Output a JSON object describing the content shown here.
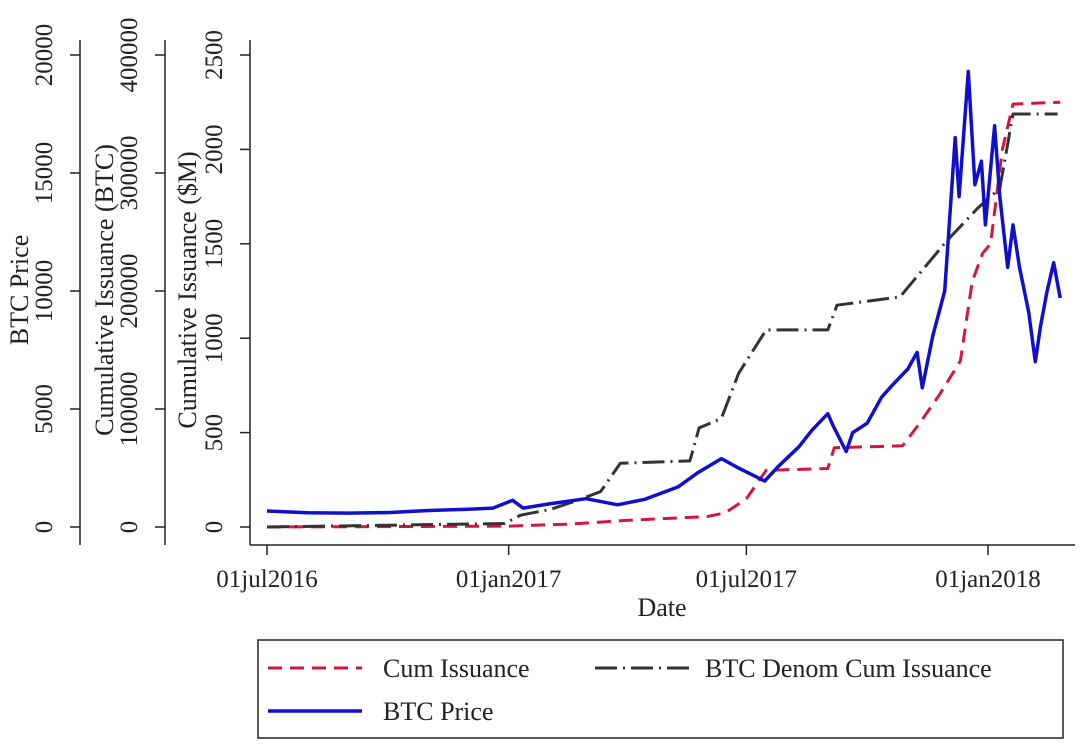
{
  "chart_data": {
    "type": "line",
    "xlabel": "Date",
    "x_ticks": [
      "01jul2016",
      "01jan2017",
      "01jul2017",
      "01jan2018"
    ],
    "x_tick_dates": [
      "2016-07-01",
      "2017-01-01",
      "2017-07-01",
      "2018-01-01"
    ],
    "y_axes": [
      {
        "label": "BTC Price",
        "range": [
          0,
          20000
        ],
        "ticks": [
          "0",
          "5000",
          "10000",
          "15000",
          "20000"
        ]
      },
      {
        "label": "Cumulative Issuance (BTC)",
        "range": [
          0,
          400000
        ],
        "ticks": [
          "0",
          "100000",
          "200000",
          "300000",
          "400000"
        ]
      },
      {
        "label": "Cumulative Issuance ($M)",
        "range": [
          0,
          2500
        ],
        "ticks": [
          "0",
          "500",
          "1000",
          "1500",
          "2000",
          "2500"
        ]
      }
    ],
    "legend": {
      "position": "bottom",
      "entries": [
        "Cum Issuance",
        "BTC Denom Cum Issuance",
        "BTC Price"
      ]
    },
    "series": [
      {
        "name": "Cum Issuance",
        "axis": 2,
        "color": "#d4163c",
        "style": "dashed",
        "points": [
          [
            "2016-07-01",
            0
          ],
          [
            "2016-10-01",
            2
          ],
          [
            "2017-01-01",
            5
          ],
          [
            "2017-02-15",
            15
          ],
          [
            "2017-04-01",
            35
          ],
          [
            "2017-05-01",
            45
          ],
          [
            "2017-06-01",
            55
          ],
          [
            "2017-06-15",
            75
          ],
          [
            "2017-07-01",
            150
          ],
          [
            "2017-07-16",
            300
          ],
          [
            "2017-09-01",
            310
          ],
          [
            "2017-09-06",
            420
          ],
          [
            "2017-10-28",
            430
          ],
          [
            "2017-11-10",
            550
          ],
          [
            "2017-11-25",
            700
          ],
          [
            "2017-12-11",
            880
          ],
          [
            "2017-12-20",
            1300
          ],
          [
            "2017-12-28",
            1450
          ],
          [
            "2018-01-03",
            1500
          ],
          [
            "2018-01-12",
            2000
          ],
          [
            "2018-01-20",
            2240
          ],
          [
            "2018-02-25",
            2250
          ]
        ]
      },
      {
        "name": "BTC Denom Cum Issuance",
        "axis": 1,
        "color": "#333333",
        "style": "dashdot",
        "points": [
          [
            "2016-07-01",
            0
          ],
          [
            "2016-12-29",
            3000
          ],
          [
            "2017-01-10",
            10000
          ],
          [
            "2017-02-02",
            15000
          ],
          [
            "2017-02-21",
            22000
          ],
          [
            "2017-03-12",
            30000
          ],
          [
            "2017-03-27",
            54000
          ],
          [
            "2017-05-19",
            56000
          ],
          [
            "2017-05-26",
            84000
          ],
          [
            "2017-06-12",
            92000
          ],
          [
            "2017-06-25",
            130000
          ],
          [
            "2017-07-16",
            167000
          ],
          [
            "2017-09-01",
            167000
          ],
          [
            "2017-09-08",
            188000
          ],
          [
            "2017-10-26",
            195000
          ],
          [
            "2017-12-01",
            243000
          ],
          [
            "2017-12-24",
            270000
          ],
          [
            "2018-01-10",
            287000
          ],
          [
            "2018-01-20",
            350000
          ],
          [
            "2018-02-23",
            350000
          ]
        ]
      },
      {
        "name": "BTC Price",
        "axis": 0,
        "color": "#1010cc",
        "style": "solid",
        "points": [
          [
            "2016-07-01",
            680
          ],
          [
            "2016-08-01",
            600
          ],
          [
            "2016-09-01",
            590
          ],
          [
            "2016-10-01",
            610
          ],
          [
            "2016-11-01",
            700
          ],
          [
            "2016-12-01",
            750
          ],
          [
            "2016-12-20",
            800
          ],
          [
            "2017-01-04",
            1130
          ],
          [
            "2017-01-12",
            800
          ],
          [
            "2017-02-01",
            980
          ],
          [
            "2017-03-01",
            1200
          ],
          [
            "2017-03-25",
            940
          ],
          [
            "2017-04-15",
            1180
          ],
          [
            "2017-05-10",
            1700
          ],
          [
            "2017-05-25",
            2300
          ],
          [
            "2017-06-12",
            2900
          ],
          [
            "2017-06-25",
            2500
          ],
          [
            "2017-07-15",
            1950
          ],
          [
            "2017-07-25",
            2550
          ],
          [
            "2017-08-10",
            3400
          ],
          [
            "2017-08-20",
            4100
          ],
          [
            "2017-09-01",
            4800
          ],
          [
            "2017-09-05",
            4300
          ],
          [
            "2017-09-15",
            3200
          ],
          [
            "2017-09-20",
            4000
          ],
          [
            "2017-10-01",
            4400
          ],
          [
            "2017-10-12",
            5500
          ],
          [
            "2017-10-20",
            6000
          ],
          [
            "2017-11-01",
            6700
          ],
          [
            "2017-11-08",
            7400
          ],
          [
            "2017-11-12",
            5900
          ],
          [
            "2017-11-20",
            8100
          ],
          [
            "2017-11-29",
            10000
          ],
          [
            "2017-12-07",
            16500
          ],
          [
            "2017-12-10",
            14000
          ],
          [
            "2017-12-17",
            19300
          ],
          [
            "2017-12-22",
            14500
          ],
          [
            "2017-12-27",
            15500
          ],
          [
            "2017-12-30",
            12800
          ],
          [
            "2018-01-06",
            17000
          ],
          [
            "2018-01-10",
            14000
          ],
          [
            "2018-01-16",
            11000
          ],
          [
            "2018-01-20",
            12800
          ],
          [
            "2018-01-25",
            11000
          ],
          [
            "2018-02-01",
            9100
          ],
          [
            "2018-02-06",
            7000
          ],
          [
            "2018-02-10",
            8500
          ],
          [
            "2018-02-15",
            10000
          ],
          [
            "2018-02-20",
            11200
          ],
          [
            "2018-02-25",
            9700
          ]
        ]
      }
    ]
  }
}
